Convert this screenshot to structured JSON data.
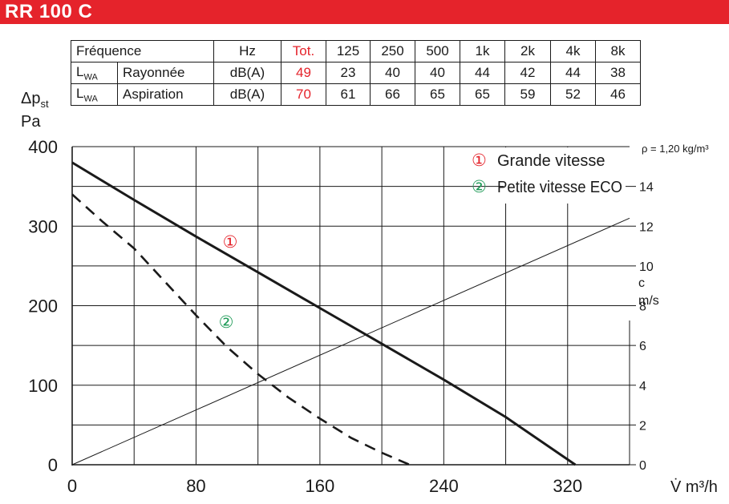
{
  "title": "RR 100 C",
  "accent_color": "#e5232b",
  "curve2_color": "#1e9a57",
  "spec_table": {
    "header": {
      "label": "Fréquence",
      "unit": "Hz",
      "tot": "Tot.",
      "bands": [
        "125",
        "250",
        "500",
        "1k",
        "2k",
        "4k",
        "8k"
      ]
    },
    "rows": [
      {
        "lwa": "L",
        "lwa_sub": "WA",
        "label": "Rayonnée",
        "unit": "dB(A)",
        "tot": "49",
        "values": [
          "23",
          "40",
          "40",
          "44",
          "42",
          "44",
          "38"
        ]
      },
      {
        "lwa": "L",
        "lwa_sub": "WA",
        "label": "Aspiration",
        "unit": "dB(A)",
        "tot": "70",
        "values": [
          "61",
          "66",
          "65",
          "65",
          "59",
          "52",
          "46"
        ]
      }
    ]
  },
  "y_axis_label": {
    "main": "Δp",
    "sub": "st",
    "unit": "Pa"
  },
  "right_axis_label": {
    "line1": "c",
    "line2": "m/s"
  },
  "x_axis_label": "V̇ m³/h",
  "density_note": "ρ = 1,20 kg/m³",
  "legend": [
    {
      "marker": "①",
      "text": "Grande vitesse"
    },
    {
      "marker": "②",
      "text": "Petite vitesse ECO"
    }
  ],
  "chart_data": {
    "type": "line",
    "x_ticks": [
      "0",
      "80",
      "160",
      "240",
      "320"
    ],
    "y_ticks": [
      "0",
      "100",
      "200",
      "300",
      "400"
    ],
    "right_ticks": [
      "0",
      "2",
      "4",
      "6",
      "8",
      "10",
      "12",
      "14"
    ],
    "xlim": [
      0,
      360
    ],
    "ylim": [
      0,
      400
    ],
    "right_ylim": [
      0,
      16
    ],
    "grid": true,
    "series": [
      {
        "name": "Grande vitesse",
        "marker": "①",
        "style": "solid",
        "x": [
          0,
          40,
          80,
          120,
          160,
          200,
          240,
          280,
          325
        ],
        "y": [
          380,
          333,
          287,
          242,
          197,
          152,
          107,
          60,
          0
        ]
      },
      {
        "name": "Petite vitesse ECO",
        "marker": "②",
        "style": "dashed",
        "x": [
          0,
          20,
          40,
          60,
          80,
          100,
          120,
          140,
          160,
          180,
          200,
          218
        ],
        "y": [
          340,
          305,
          272,
          230,
          188,
          148,
          114,
          84,
          58,
          34,
          15,
          0
        ]
      },
      {
        "name": "c (m/s)",
        "style": "thin",
        "axis": "right",
        "x": [
          0,
          360
        ],
        "y": [
          0,
          12.4
        ]
      }
    ]
  }
}
